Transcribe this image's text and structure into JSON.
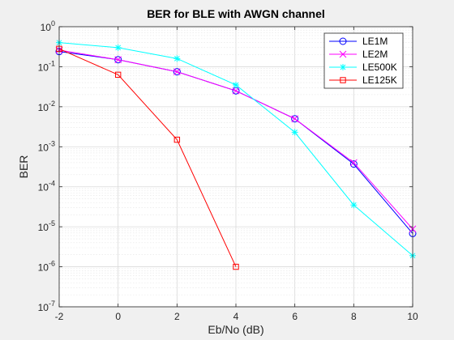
{
  "chart_data": {
    "type": "line",
    "title": "BER for BLE with AWGN channel",
    "xlabel": "Eb/No (dB)",
    "ylabel": "BER",
    "xlim": [
      -2,
      10
    ],
    "ylim": [
      1e-07,
      1
    ],
    "yscale": "log",
    "grid": "on (major and minor)",
    "legend_position": "top-right",
    "x_ticks": [
      "-2",
      "0",
      "2",
      "4",
      "6",
      "8",
      "10"
    ],
    "y_tick_exponents": [
      "-7",
      "-6",
      "-5",
      "-4",
      "-3",
      "-2",
      "-1",
      "0"
    ],
    "y_tick_base": "10",
    "series": [
      {
        "name": "LE1M",
        "color": "#0000ff",
        "marker": "circle",
        "x": [
          -2,
          0,
          2,
          4,
          6,
          8,
          10
        ],
        "y": [
          0.24,
          0.15,
          0.075,
          0.025,
          0.005,
          0.00037,
          6.8e-06
        ]
      },
      {
        "name": "LE2M",
        "color": "#ff00ff",
        "marker": "x",
        "x": [
          -2,
          0,
          2,
          4,
          6,
          8,
          10
        ],
        "y": [
          0.26,
          0.15,
          0.075,
          0.025,
          0.005,
          0.0004,
          8.8e-06
        ]
      },
      {
        "name": "LE500K",
        "color": "#00ffff",
        "marker": "asterisk",
        "x": [
          -2,
          0,
          2,
          4,
          6,
          8,
          10
        ],
        "y": [
          0.4,
          0.3,
          0.16,
          0.035,
          0.0023,
          3.5e-05,
          1.9e-06
        ]
      },
      {
        "name": "LE125K",
        "color": "#ff0000",
        "marker": "square",
        "x": [
          -2,
          0,
          2,
          4
        ],
        "y": [
          0.28,
          0.063,
          0.0015,
          1e-06
        ]
      }
    ]
  }
}
